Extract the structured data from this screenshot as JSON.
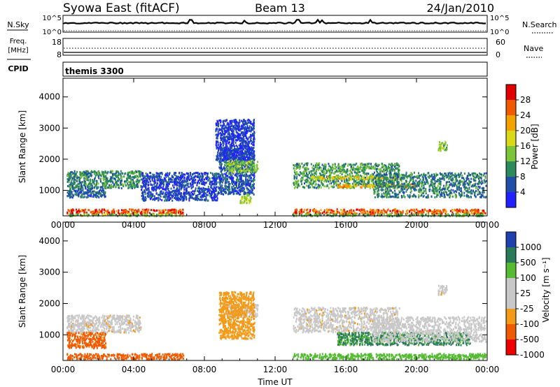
{
  "header": {
    "station": "Syowa East (fitACF)",
    "beam": "Beam 13",
    "date": "24/Jan/2010"
  },
  "noise_panel": {
    "left_label": "N.Sky",
    "left_ticks": [
      "10^5",
      "10^0"
    ],
    "right_ticks": [
      "10^5",
      "10^0"
    ],
    "right_label": "N.Search"
  },
  "freq_panel": {
    "left_label_1": "Freq.",
    "left_label_2": "[MHz]",
    "left_ticks": [
      "18",
      "8"
    ],
    "right_ticks": [
      "60",
      "0"
    ],
    "right_label": "Nave"
  },
  "cpid": {
    "label": "CPID",
    "value": "themis 3300"
  },
  "colors": {
    "power": [
      "#2222ff",
      "#1f4fa8",
      "#2d8a5a",
      "#7cc43a",
      "#d9d919",
      "#f2a200",
      "#f25a00",
      "#e00000"
    ],
    "velocity": [
      "#ee0000",
      "#f05a00",
      "#f39a18",
      "#c8c8c8",
      "#c8c8c8",
      "#55bb33",
      "#2a7a5a",
      "#2040b0"
    ],
    "gray": "#c8c8c8"
  },
  "chart_data": [
    {
      "type": "heatmap",
      "name": "power",
      "ylabel": "Slant Range [km]",
      "xlabel": "",
      "xlim": [
        0,
        24
      ],
      "ylim": [
        180,
        4600
      ],
      "x_tick_labels": [
        "00:00",
        "04:00",
        "08:00",
        "12:00",
        "16:00",
        "20:00",
        "00:00"
      ],
      "y_tick_values": [
        1000,
        2000,
        3000,
        4000
      ],
      "colorbar": {
        "label": "Power [dB]",
        "ticks": [
          "4",
          "8",
          "12",
          "16",
          "20",
          "24",
          "28"
        ],
        "range": [
          0,
          32
        ]
      },
      "regions": [
        {
          "t": [
            0.2,
            6.8
          ],
          "r": [
            260,
            420
          ],
          "value": 27
        },
        {
          "t": [
            0.3,
            6.8
          ],
          "r": [
            200,
            270
          ],
          "value": 14
        },
        {
          "t": [
            13.0,
            23.9
          ],
          "r": [
            260,
            420
          ],
          "value": 26
        },
        {
          "t": [
            13.0,
            23.9
          ],
          "r": [
            200,
            270
          ],
          "value": 12
        },
        {
          "t": [
            0.2,
            4.4
          ],
          "r": [
            1100,
            1650
          ],
          "value": 10
        },
        {
          "t": [
            0.2,
            2.4
          ],
          "r": [
            800,
            1100
          ],
          "value": 7
        },
        {
          "t": [
            4.4,
            8.8
          ],
          "r": [
            700,
            1600
          ],
          "value": 5
        },
        {
          "t": [
            8.8,
            10.8
          ],
          "r": [
            900,
            2400
          ],
          "value": 6
        },
        {
          "t": [
            9.2,
            11.0
          ],
          "r": [
            1600,
            2000
          ],
          "value": 14
        },
        {
          "t": [
            10.0,
            10.6
          ],
          "r": [
            620,
            900
          ],
          "value": 16
        },
        {
          "t": [
            13.0,
            19.0
          ],
          "r": [
            1100,
            1900
          ],
          "value": 11
        },
        {
          "t": [
            14.0,
            19.0
          ],
          "r": [
            1380,
            1480
          ],
          "value": 18
        },
        {
          "t": [
            15.5,
            20.0
          ],
          "r": [
            1120,
            1220
          ],
          "value": 21
        },
        {
          "t": [
            17.5,
            23.9
          ],
          "r": [
            800,
            1600
          ],
          "value": 9
        },
        {
          "t": [
            21.2,
            21.7
          ],
          "r": [
            2300,
            2600
          ],
          "value": 14
        },
        {
          "t": [
            8.6,
            10.8
          ],
          "r": [
            2000,
            3300
          ],
          "value": 4
        }
      ]
    },
    {
      "type": "heatmap",
      "name": "velocity",
      "ylabel": "Slant Range [km]",
      "xlabel": "Time UT",
      "xlim": [
        0,
        24
      ],
      "ylim": [
        180,
        4600
      ],
      "x_tick_labels": [
        "00:00",
        "04:00",
        "08:00",
        "12:00",
        "16:00",
        "20:00",
        "00:00"
      ],
      "y_tick_values": [
        1000,
        2000,
        3000,
        4000
      ],
      "colorbar": {
        "label": "Velocity [m s⁻¹]",
        "ticks": [
          "1000",
          "500",
          "100",
          "25",
          "-25",
          "-100",
          "-500",
          "-1000"
        ],
        "levels": [
          -1500,
          -1000,
          -500,
          -100,
          -25,
          25,
          100,
          500,
          1000,
          1500
        ]
      },
      "regions": [
        {
          "t": [
            0.2,
            6.8
          ],
          "r": [
            240,
            420
          ],
          "value": -300
        },
        {
          "t": [
            13.0,
            23.9
          ],
          "r": [
            240,
            420
          ],
          "value": 180
        },
        {
          "t": [
            0.2,
            4.4
          ],
          "r": [
            1100,
            1650
          ],
          "value": 0
        },
        {
          "t": [
            0.2,
            2.4
          ],
          "r": [
            600,
            1100
          ],
          "value": -150
        },
        {
          "t": [
            9.2,
            11.0
          ],
          "r": [
            1600,
            2000
          ],
          "value": 10
        },
        {
          "t": [
            8.8,
            10.8
          ],
          "r": [
            900,
            2400
          ],
          "value": -60
        },
        {
          "t": [
            13.0,
            19.0
          ],
          "r": [
            1100,
            1900
          ],
          "value": 0
        },
        {
          "t": [
            15.5,
            23.0
          ],
          "r": [
            700,
            1100
          ],
          "value": 600
        },
        {
          "t": [
            17.5,
            23.9
          ],
          "r": [
            800,
            1600
          ],
          "value": 60
        },
        {
          "t": [
            21.2,
            21.7
          ],
          "r": [
            2300,
            2600
          ],
          "value": 0
        }
      ]
    }
  ]
}
